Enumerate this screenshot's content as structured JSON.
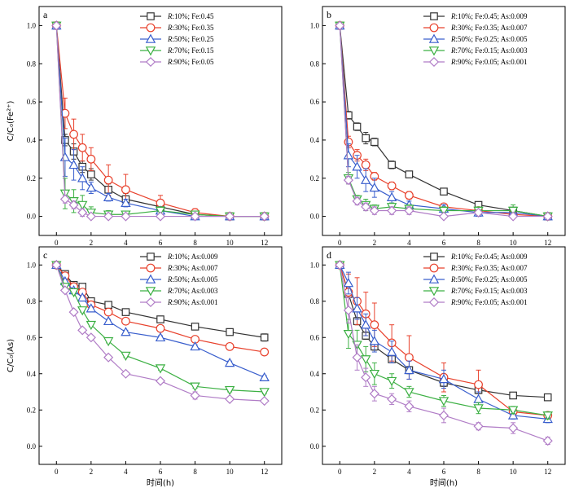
{
  "chart_data": [
    {
      "panel": "a",
      "type": "line",
      "ylabel": "C/C₀(Fe²⁺)",
      "xlabel": "",
      "xlim": [
        -1,
        13
      ],
      "ylim": [
        -0.1,
        1.1
      ],
      "xticks": [
        0,
        2,
        4,
        6,
        8,
        10,
        12
      ],
      "yticks": [
        0.0,
        0.2,
        0.4,
        0.6,
        0.8,
        1.0
      ],
      "legend_position": "top-right",
      "x": [
        0,
        0.5,
        1,
        1.5,
        2,
        3,
        4,
        6,
        8,
        10,
        12
      ],
      "series": [
        {
          "name": "R:10%; Fe:0.45",
          "color": "#333333",
          "marker": "square",
          "values": [
            1.0,
            0.4,
            0.34,
            0.26,
            0.22,
            0.14,
            0.09,
            0.05,
            0.01,
            0.0,
            0.0
          ],
          "errors": [
            0,
            0.03,
            0.04,
            0.03,
            0.03,
            0.03,
            0.03,
            0.02,
            0.01,
            0.0,
            0.0
          ]
        },
        {
          "name": "R:30%; Fe:0.35",
          "color": "#e8412c",
          "marker": "circle",
          "values": [
            1.0,
            0.54,
            0.43,
            0.36,
            0.3,
            0.19,
            0.14,
            0.07,
            0.02,
            0.0,
            0.0
          ],
          "errors": [
            0,
            0.08,
            0.08,
            0.07,
            0.06,
            0.08,
            0.08,
            0.04,
            0.02,
            0.0,
            0.0
          ]
        },
        {
          "name": "R:50%; Fe:0.25",
          "color": "#3a5fcd",
          "marker": "triangle-up",
          "values": [
            1.0,
            0.31,
            0.27,
            0.2,
            0.15,
            0.1,
            0.07,
            0.03,
            0.0,
            0.0,
            0.0
          ],
          "errors": [
            0,
            0.1,
            0.08,
            0.06,
            0.03,
            0.02,
            0.02,
            0.02,
            0.0,
            0.0,
            0.0
          ]
        },
        {
          "name": "R:70%; Fe:0.15",
          "color": "#3cb043",
          "marker": "triangle-down",
          "values": [
            1.0,
            0.12,
            0.08,
            0.06,
            0.02,
            0.01,
            0.01,
            0.03,
            0.01,
            0.0,
            0.0
          ],
          "errors": [
            0,
            0.08,
            0.06,
            0.05,
            0.03,
            0.02,
            0.01,
            0.02,
            0.01,
            0.0,
            0.0
          ]
        },
        {
          "name": "R:90%; Fe:0.05",
          "color": "#b07cc6",
          "marker": "diamond",
          "values": [
            1.0,
            0.09,
            0.06,
            0.02,
            0.0,
            0.0,
            0.0,
            0.0,
            0.0,
            0.0,
            0.0
          ],
          "errors": [
            0,
            0.02,
            0.02,
            0.02,
            0.0,
            0.0,
            0.0,
            0.0,
            0.0,
            0.0,
            0.0
          ]
        }
      ]
    },
    {
      "panel": "b",
      "type": "line",
      "ylabel": "",
      "xlabel": "",
      "xlim": [
        -1,
        13
      ],
      "ylim": [
        -0.1,
        1.1
      ],
      "xticks": [
        0,
        2,
        4,
        6,
        8,
        10,
        12
      ],
      "yticks": [
        0.0,
        0.2,
        0.4,
        0.6,
        0.8,
        1.0
      ],
      "legend_position": "top-right",
      "x": [
        0,
        0.5,
        1,
        1.5,
        2,
        3,
        4,
        6,
        8,
        10,
        12
      ],
      "series": [
        {
          "name": "R:10%; Fe:0.45; As:0.009",
          "color": "#333333",
          "marker": "square",
          "values": [
            1.0,
            0.53,
            0.47,
            0.41,
            0.39,
            0.27,
            0.22,
            0.13,
            0.06,
            0.03,
            0.0
          ],
          "errors": [
            0,
            0.02,
            0.02,
            0.03,
            0.02,
            0.02,
            0.01,
            0.01,
            0.01,
            0.01,
            0.0
          ]
        },
        {
          "name": "R:30%; Fe:0.35; As:0.007",
          "color": "#e8412c",
          "marker": "circle",
          "values": [
            1.0,
            0.39,
            0.32,
            0.27,
            0.21,
            0.16,
            0.11,
            0.05,
            0.03,
            0.01,
            0.0
          ],
          "errors": [
            0,
            0.03,
            0.03,
            0.03,
            0.02,
            0.02,
            0.02,
            0.01,
            0.01,
            0.01,
            0.0
          ]
        },
        {
          "name": "R:50%; Fe:0.25; As:0.005",
          "color": "#3a5fcd",
          "marker": "triangle-up",
          "values": [
            1.0,
            0.32,
            0.26,
            0.19,
            0.15,
            0.1,
            0.06,
            0.04,
            0.02,
            0.02,
            0.0
          ],
          "errors": [
            0,
            0.06,
            0.06,
            0.06,
            0.05,
            0.03,
            0.02,
            0.02,
            0.02,
            0.02,
            0.0
          ]
        },
        {
          "name": "R:70%; Fe:0.15; As:0.003",
          "color": "#3cb043",
          "marker": "triangle-down",
          "values": [
            1.0,
            0.2,
            0.09,
            0.06,
            0.04,
            0.05,
            0.04,
            0.03,
            0.03,
            0.03,
            0.0
          ],
          "errors": [
            0,
            0.03,
            0.02,
            0.03,
            0.02,
            0.02,
            0.02,
            0.02,
            0.02,
            0.03,
            0.0
          ]
        },
        {
          "name": "R:90%; Fe:0.05; As:0.001",
          "color": "#b07cc6",
          "marker": "diamond",
          "values": [
            1.0,
            0.19,
            0.08,
            0.05,
            0.03,
            0.03,
            0.03,
            0.0,
            0.02,
            0.0,
            0.0
          ],
          "errors": [
            0,
            0.02,
            0.02,
            0.02,
            0.02,
            0.02,
            0.02,
            0.0,
            0.01,
            0.0,
            0.0
          ]
        }
      ]
    },
    {
      "panel": "c",
      "type": "line",
      "ylabel": "C/C₀(As)",
      "xlabel": "时间(h)",
      "xlim": [
        -1,
        13
      ],
      "ylim": [
        -0.1,
        1.1
      ],
      "xticks": [
        0,
        2,
        4,
        6,
        8,
        10,
        12
      ],
      "yticks": [
        0.0,
        0.2,
        0.4,
        0.6,
        0.8,
        1.0
      ],
      "legend_position": "top-right",
      "x": [
        0,
        0.5,
        1,
        1.5,
        2,
        3,
        4,
        6,
        8,
        10,
        12
      ],
      "series": [
        {
          "name": "R:10%; As:0.009",
          "color": "#333333",
          "marker": "square",
          "values": [
            1.0,
            0.95,
            0.89,
            0.88,
            0.8,
            0.78,
            0.74,
            0.7,
            0.66,
            0.63,
            0.6
          ],
          "errors": [
            0,
            0.01,
            0.01,
            0.01,
            0.01,
            0.01,
            0.01,
            0.01,
            0.01,
            0.01,
            0.02
          ]
        },
        {
          "name": "R:30%; As:0.007",
          "color": "#e8412c",
          "marker": "circle",
          "values": [
            1.0,
            0.94,
            0.88,
            0.85,
            0.78,
            0.74,
            0.69,
            0.65,
            0.59,
            0.55,
            0.52
          ],
          "errors": [
            0,
            0.01,
            0.01,
            0.01,
            0.01,
            0.01,
            0.01,
            0.01,
            0.01,
            0.01,
            0.01
          ]
        },
        {
          "name": "R:50%; As:0.005",
          "color": "#3a5fcd",
          "marker": "triangle-up",
          "values": [
            1.0,
            0.91,
            0.86,
            0.82,
            0.76,
            0.69,
            0.63,
            0.6,
            0.55,
            0.46,
            0.38
          ],
          "errors": [
            0,
            0.01,
            0.01,
            0.01,
            0.01,
            0.01,
            0.01,
            0.01,
            0.01,
            0.01,
            0.01
          ]
        },
        {
          "name": "R:70%; As:0.003",
          "color": "#3cb043",
          "marker": "triangle-down",
          "values": [
            1.0,
            0.88,
            0.85,
            0.75,
            0.67,
            0.58,
            0.5,
            0.43,
            0.33,
            0.31,
            0.3
          ],
          "errors": [
            0,
            0.01,
            0.01,
            0.01,
            0.01,
            0.01,
            0.01,
            0.01,
            0.01,
            0.01,
            0.01
          ]
        },
        {
          "name": "R:90%; As:0.001",
          "color": "#b07cc6",
          "marker": "diamond",
          "values": [
            1.0,
            0.86,
            0.74,
            0.64,
            0.6,
            0.49,
            0.4,
            0.36,
            0.28,
            0.26,
            0.25
          ],
          "errors": [
            0,
            0.01,
            0.01,
            0.01,
            0.01,
            0.01,
            0.01,
            0.01,
            0.02,
            0.01,
            0.01
          ]
        }
      ]
    },
    {
      "panel": "d",
      "type": "line",
      "ylabel": "",
      "xlabel": "时间(h)",
      "xlim": [
        -1,
        13
      ],
      "ylim": [
        -0.1,
        1.1
      ],
      "xticks": [
        0,
        2,
        4,
        6,
        8,
        10,
        12
      ],
      "yticks": [
        0.0,
        0.2,
        0.4,
        0.6,
        0.8,
        1.0
      ],
      "legend_position": "top-right",
      "x": [
        0,
        0.5,
        1,
        1.5,
        2,
        3,
        4,
        6,
        8,
        10,
        12
      ],
      "series": [
        {
          "name": "R:10%; Fe:0.45; As:0.009",
          "color": "#333333",
          "marker": "square",
          "values": [
            1.0,
            0.84,
            0.69,
            0.61,
            0.55,
            0.48,
            0.42,
            0.35,
            0.31,
            0.28,
            0.27
          ],
          "errors": [
            0,
            0.02,
            0.02,
            0.02,
            0.02,
            0.02,
            0.02,
            0.02,
            0.02,
            0.01,
            0.01
          ]
        },
        {
          "name": "R:30%; Fe:0.35; As:0.007",
          "color": "#e8412c",
          "marker": "circle",
          "values": [
            1.0,
            0.85,
            0.8,
            0.73,
            0.67,
            0.57,
            0.49,
            0.38,
            0.34,
            0.19,
            0.17
          ],
          "errors": [
            0,
            0.1,
            0.13,
            0.12,
            0.12,
            0.1,
            0.12,
            0.08,
            0.08,
            0.02,
            0.02
          ]
        },
        {
          "name": "R:50%; Fe:0.25; As:0.005",
          "color": "#3a5fcd",
          "marker": "triangle-up",
          "values": [
            1.0,
            0.9,
            0.76,
            0.67,
            0.58,
            0.52,
            0.42,
            0.37,
            0.26,
            0.17,
            0.15
          ],
          "errors": [
            0,
            0.06,
            0.06,
            0.06,
            0.06,
            0.06,
            0.05,
            0.05,
            0.04,
            0.02,
            0.02
          ]
        },
        {
          "name": "R:70%; Fe:0.15; As:0.003",
          "color": "#3cb043",
          "marker": "triangle-down",
          "values": [
            1.0,
            0.62,
            0.56,
            0.48,
            0.4,
            0.36,
            0.3,
            0.25,
            0.21,
            0.2,
            0.17
          ],
          "errors": [
            0,
            0.08,
            0.08,
            0.07,
            0.06,
            0.04,
            0.03,
            0.03,
            0.03,
            0.02,
            0.02
          ]
        },
        {
          "name": "R:90%; Fe:0.05; As:0.001",
          "color": "#b07cc6",
          "marker": "diamond",
          "values": [
            1.0,
            0.75,
            0.49,
            0.38,
            0.29,
            0.26,
            0.22,
            0.17,
            0.11,
            0.1,
            0.03
          ],
          "errors": [
            0,
            0.07,
            0.07,
            0.05,
            0.04,
            0.03,
            0.03,
            0.04,
            0.02,
            0.03,
            0.02
          ]
        }
      ]
    }
  ]
}
